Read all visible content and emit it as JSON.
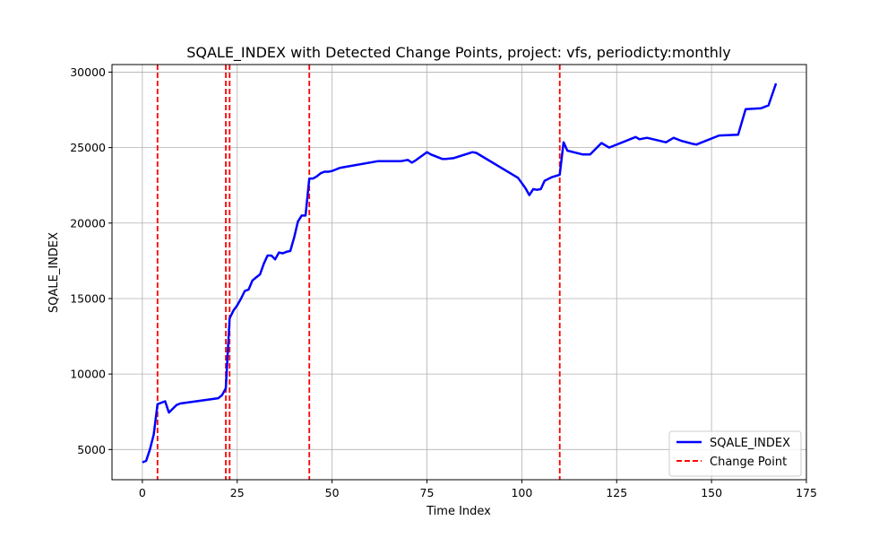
{
  "chart_data": {
    "type": "line",
    "title": "SQALE_INDEX with Detected Change Points, project: vfs, periodicty:monthly",
    "xlabel": "Time Index",
    "ylabel": "SQALE_INDEX",
    "xlim": [
      -8,
      175
    ],
    "ylim": [
      3000,
      30500
    ],
    "xticks": [
      0,
      25,
      50,
      75,
      100,
      125,
      150,
      175
    ],
    "yticks": [
      5000,
      10000,
      15000,
      20000,
      25000,
      30000
    ],
    "grid": true,
    "legend_position": "lower-right",
    "series": [
      {
        "name": "SQALE_INDEX",
        "color": "#0000ff",
        "style": "solid",
        "x": [
          0,
          1,
          2,
          3,
          4,
          5,
          6,
          7,
          8,
          9,
          10,
          20,
          21,
          22,
          23,
          24,
          25,
          26,
          27,
          28,
          29,
          30,
          31,
          32,
          33,
          34,
          35,
          36,
          37,
          38,
          39,
          40,
          41,
          42,
          43,
          44,
          45,
          46,
          47,
          48,
          49,
          50,
          51,
          52,
          53,
          62,
          68,
          70,
          71,
          72,
          75,
          76,
          79,
          80,
          82,
          87,
          88,
          99,
          100,
          101,
          102,
          103,
          104,
          105,
          106,
          108,
          110,
          111,
          112,
          116,
          118,
          121,
          123,
          130,
          131,
          133,
          138,
          140,
          142,
          145,
          146,
          152,
          157,
          159,
          163,
          165,
          167
        ],
        "values": [
          4150,
          4250,
          5000,
          6000,
          8000,
          8100,
          8200,
          7450,
          7700,
          7950,
          8050,
          8400,
          8600,
          9050,
          13700,
          14200,
          14550,
          15000,
          15500,
          15600,
          16200,
          16400,
          16600,
          17300,
          17850,
          17850,
          17600,
          18050,
          18000,
          18100,
          18150,
          19050,
          20100,
          20500,
          20500,
          22950,
          22950,
          23100,
          23300,
          23400,
          23400,
          23450,
          23550,
          23650,
          23700,
          24100,
          24100,
          24180,
          24000,
          24150,
          24700,
          24550,
          24250,
          24250,
          24300,
          24700,
          24650,
          23000,
          22650,
          22300,
          21850,
          22250,
          22200,
          22250,
          22800,
          23050,
          23200,
          25350,
          24800,
          24550,
          24550,
          25300,
          25000,
          25700,
          25550,
          25650,
          25350,
          25650,
          25450,
          25250,
          25200,
          25800,
          25850,
          27550,
          27600,
          27800,
          29250
        ]
      }
    ],
    "change_points": {
      "name": "Change Point",
      "color": "#ff0000",
      "style": "dashed",
      "x": [
        4,
        22,
        23,
        44,
        110
      ]
    }
  }
}
